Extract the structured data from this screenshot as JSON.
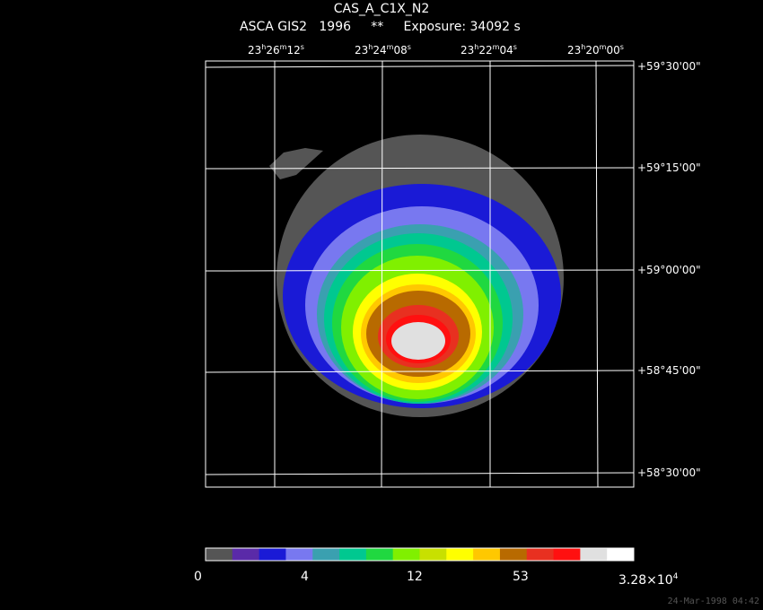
{
  "header": {
    "title": "CAS_A_C1X_N2",
    "subtitle": "ASCA GIS2   1996     **     Exposure: 34092 s"
  },
  "ra_ticks": [
    {
      "h": "23",
      "m": "26",
      "s": "12"
    },
    {
      "h": "23",
      "m": "24",
      "s": "08"
    },
    {
      "h": "23",
      "m": "22",
      "s": "04"
    },
    {
      "h": "23",
      "m": "20",
      "s": "00"
    }
  ],
  "dec_ticks": [
    "+59°30'00\"",
    "+59°15'00\"",
    "+59°00'00\"",
    "+58°45'00\"",
    "+58°30'00\""
  ],
  "colorbar": {
    "colors": [
      "#555555",
      "#5a2aa8",
      "#1a1ad6",
      "#7878f0",
      "#3aa0b0",
      "#00c890",
      "#20d840",
      "#80f000",
      "#c8e000",
      "#ffff00",
      "#ffc800",
      "#b86a00",
      "#e83020",
      "#ff1010",
      "#e0e0e0",
      "#ffffff"
    ],
    "labels": [
      "0",
      "4",
      "12",
      "53",
      "3.28×10"
    ],
    "label_exponent": "4"
  },
  "footer": {
    "timestamp": "24-Mar-1998 04:42"
  }
}
